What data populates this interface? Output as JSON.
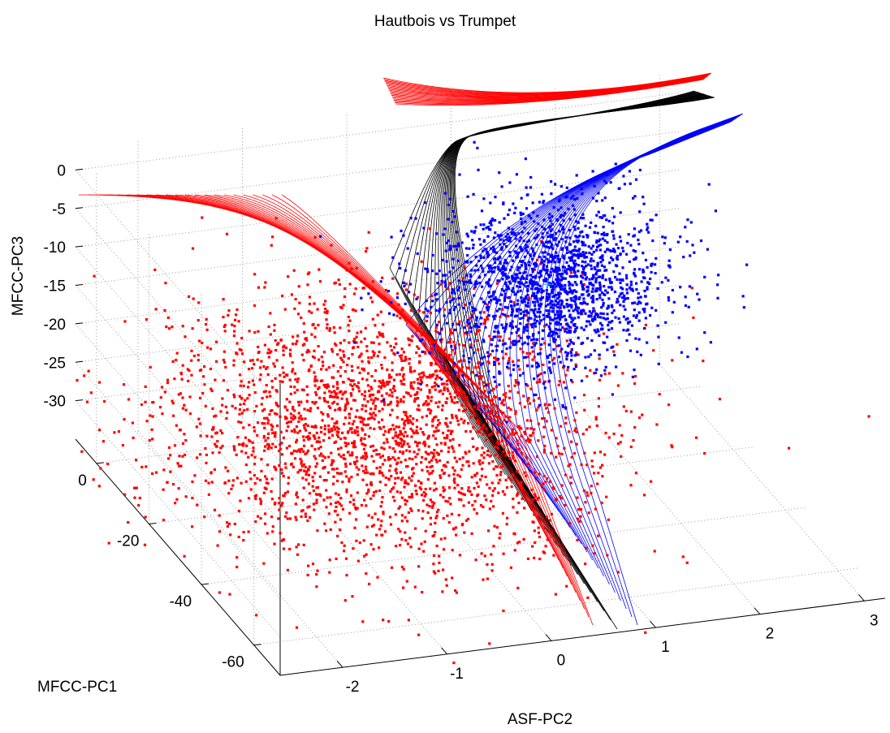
{
  "chart_data": {
    "type": "scatter",
    "projection": "3d",
    "title": "Hautbois vs Trumpet",
    "xlabel": "ASF-PC2",
    "ylabel": "MFCC-PC1",
    "zlabel": "MFCC-PC3",
    "xticks": [
      "-2",
      "-1",
      "0",
      "1",
      "2",
      "3"
    ],
    "yticks": [
      "0",
      "-20",
      "-40",
      "-60"
    ],
    "zticks": [
      "0",
      "-5",
      "-10",
      "-15",
      "-20",
      "-25",
      "-30"
    ],
    "xlim": [
      -2.6,
      3.2
    ],
    "ylim": [
      -70,
      8
    ],
    "zlim": [
      -35,
      3
    ],
    "grid": true,
    "colors": {
      "class_a": "#ff0000",
      "class_b": "#0000ff",
      "boundary": "#000000",
      "center_marker": "#00c0c0"
    },
    "series": [
      {
        "kind": "scatter-cloud",
        "color": "#ff0000",
        "center": {
          "x": -0.6,
          "y": -30,
          "z": -22
        },
        "spread": {
          "x": 1.0,
          "y": 16,
          "z": 6
        }
      },
      {
        "kind": "scatter-cloud",
        "color": "#0000ff",
        "center": {
          "x": 1.6,
          "y": -5,
          "z": -17
        },
        "spread": {
          "x": 0.55,
          "y": 6,
          "z": 5
        }
      },
      {
        "kind": "surface-mesh",
        "color": "#ff0000"
      },
      {
        "kind": "surface-mesh",
        "color": "#000000"
      },
      {
        "kind": "surface-mesh",
        "color": "#0000ff"
      }
    ]
  }
}
